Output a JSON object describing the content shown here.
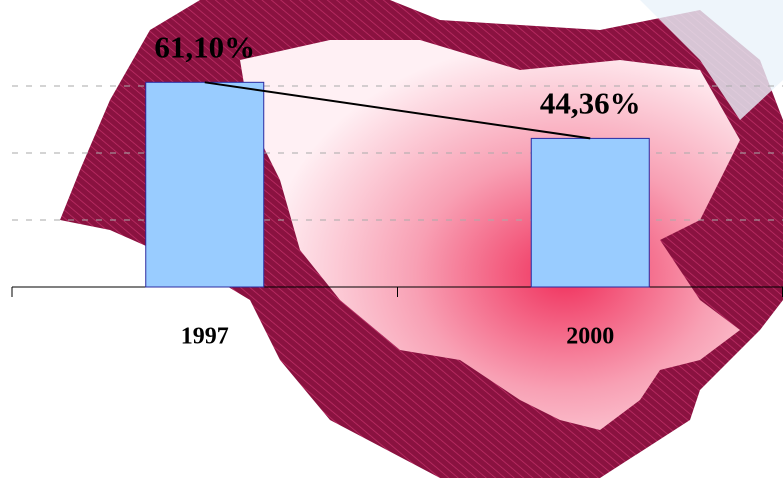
{
  "chart_data": {
    "type": "bar",
    "categories": [
      "1997",
      "2000"
    ],
    "values": [
      61.1,
      44.36
    ],
    "value_labels": [
      "61,10%",
      "44,36%"
    ],
    "color": "#99ccff",
    "connect_line": true,
    "ylim": [
      0,
      80
    ],
    "yticks": [
      20,
      40,
      60
    ],
    "grid": true,
    "show_tick_labels": false
  }
}
